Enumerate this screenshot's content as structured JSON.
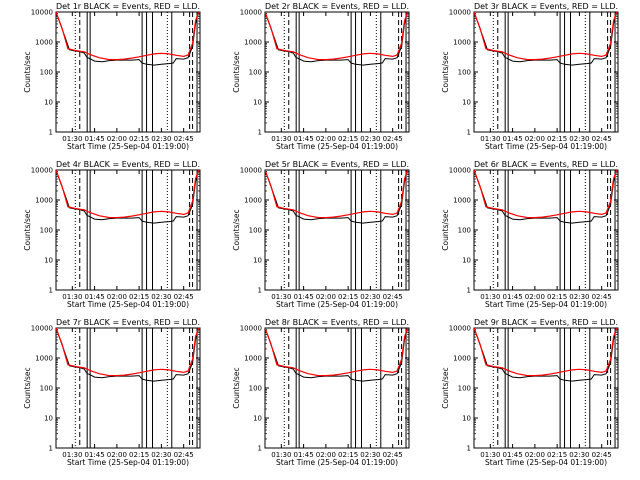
{
  "figure": {
    "xlabel": "Start Time (25-Sep-04 01:19:00)",
    "ylabel": "Counts/sec",
    "x_tick_labels": [
      "01:30",
      "01:45",
      "02:00",
      "02:15",
      "02:30",
      "02:45"
    ],
    "y_tick_labels": [
      "1",
      "10",
      "100",
      "1000",
      "10000"
    ]
  },
  "chart_data": [
    {
      "type": "line",
      "title": "Det 1r BLACK = Events, RED = LLD.",
      "xlabel": "Start Time (25-Sep-04 01:19:00)",
      "ylabel": "Counts/sec",
      "y_scale": "log",
      "xlim": [
        "01:19",
        "02:56"
      ],
      "ylim": [
        1,
        10000
      ],
      "series": [
        {
          "name": "Events",
          "color": "#000000"
        },
        {
          "name": "LLD",
          "color": "#ff0000"
        }
      ]
    },
    {
      "type": "line",
      "title": "Det 2r BLACK = Events, RED = LLD.",
      "xlabel": "Start Time (25-Sep-04 01:19:00)",
      "ylabel": "Counts/sec",
      "y_scale": "log",
      "xlim": [
        "01:19",
        "02:56"
      ],
      "ylim": [
        1,
        10000
      ],
      "series": [
        {
          "name": "Events",
          "color": "#000000"
        },
        {
          "name": "LLD",
          "color": "#ff0000"
        }
      ]
    },
    {
      "type": "line",
      "title": "Det 3r BLACK = Events, RED = LLD.",
      "xlabel": "Start Time (25-Sep-04 01:19:00)",
      "ylabel": "Counts/sec",
      "y_scale": "log",
      "xlim": [
        "01:19",
        "02:56"
      ],
      "ylim": [
        1,
        10000
      ],
      "series": [
        {
          "name": "Events",
          "color": "#000000"
        },
        {
          "name": "LLD",
          "color": "#ff0000"
        }
      ]
    },
    {
      "type": "line",
      "title": "Det 4r BLACK = Events, RED = LLD.",
      "xlabel": "Start Time (25-Sep-04 01:19:00)",
      "ylabel": "Counts/sec",
      "y_scale": "log",
      "xlim": [
        "01:19",
        "02:56"
      ],
      "ylim": [
        1,
        10000
      ],
      "series": [
        {
          "name": "Events",
          "color": "#000000"
        },
        {
          "name": "LLD",
          "color": "#ff0000"
        }
      ]
    },
    {
      "type": "line",
      "title": "Det 5r BLACK = Events, RED = LLD.",
      "xlabel": "Start Time (25-Sep-04 01:19:00)",
      "ylabel": "Counts/sec",
      "y_scale": "log",
      "xlim": [
        "01:19",
        "02:56"
      ],
      "ylim": [
        1,
        10000
      ],
      "series": [
        {
          "name": "Events",
          "color": "#000000"
        },
        {
          "name": "LLD",
          "color": "#ff0000"
        }
      ]
    },
    {
      "type": "line",
      "title": "Det 6r BLACK = Events, RED = LLD.",
      "xlabel": "Start Time (25-Sep-04 01:19:00)",
      "ylabel": "Counts/sec",
      "y_scale": "log",
      "xlim": [
        "01:19",
        "02:56"
      ],
      "ylim": [
        1,
        10000
      ],
      "series": [
        {
          "name": "Events",
          "color": "#000000"
        },
        {
          "name": "LLD",
          "color": "#ff0000"
        }
      ]
    },
    {
      "type": "line",
      "title": "Det 7r BLACK = Events, RED = LLD.",
      "xlabel": "Start Time (25-Sep-04 01:19:00)",
      "ylabel": "Counts/sec",
      "y_scale": "log",
      "xlim": [
        "01:19",
        "02:56"
      ],
      "ylim": [
        1,
        10000
      ],
      "series": [
        {
          "name": "Events",
          "color": "#000000"
        },
        {
          "name": "LLD",
          "color": "#ff0000"
        }
      ]
    },
    {
      "type": "line",
      "title": "Det 8r BLACK = Events, RED = LLD.",
      "xlabel": "Start Time (25-Sep-04 01:19:00)",
      "ylabel": "Counts/sec",
      "y_scale": "log",
      "xlim": [
        "01:19",
        "02:56"
      ],
      "ylim": [
        1,
        10000
      ],
      "series": [
        {
          "name": "Events",
          "color": "#000000"
        },
        {
          "name": "LLD",
          "color": "#ff0000"
        }
      ]
    },
    {
      "type": "line",
      "title": "Det 9r BLACK = Events, RED = LLD.",
      "xlabel": "Start Time (25-Sep-04 01:19:00)",
      "ylabel": "Counts/sec",
      "y_scale": "log",
      "xlim": [
        "01:19",
        "02:56"
      ],
      "ylim": [
        1,
        10000
      ],
      "series": [
        {
          "name": "Events",
          "color": "#000000"
        },
        {
          "name": "LLD",
          "color": "#ff0000"
        }
      ]
    }
  ],
  "events_series": [
    [
      "01:19",
      10000
    ],
    [
      "01:25",
      1500
    ],
    [
      "01:28",
      550
    ],
    [
      "01:32",
      500
    ],
    [
      "01:35",
      480
    ],
    [
      "01:38",
      430
    ],
    [
      "01:40",
      300
    ],
    [
      "01:41",
      290
    ],
    [
      "01:45",
      230
    ],
    [
      "01:50",
      220
    ],
    [
      "01:55",
      240
    ],
    [
      "02:00",
      250
    ],
    [
      "02:05",
      250
    ],
    [
      "02:10",
      250
    ],
    [
      "02:15",
      260
    ],
    [
      "02:17",
      200
    ],
    [
      "02:20",
      180
    ],
    [
      "02:25",
      170
    ],
    [
      "02:30",
      180
    ],
    [
      "02:35",
      190
    ],
    [
      "02:38",
      200
    ],
    [
      "02:40",
      280
    ],
    [
      "02:45",
      270
    ],
    [
      "02:48",
      300
    ],
    [
      "02:51",
      700
    ],
    [
      "02:53",
      4000
    ],
    [
      "02:55",
      10000
    ]
  ],
  "lld_series": [
    [
      "01:19",
      10000
    ],
    [
      "01:23",
      3000
    ],
    [
      "01:27",
      600
    ],
    [
      "01:32",
      520
    ],
    [
      "01:38",
      470
    ],
    [
      "01:42",
      380
    ],
    [
      "01:48",
      300
    ],
    [
      "01:55",
      260
    ],
    [
      "02:00",
      260
    ],
    [
      "02:05",
      270
    ],
    [
      "02:10",
      290
    ],
    [
      "02:15",
      320
    ],
    [
      "02:20",
      360
    ],
    [
      "02:25",
      400
    ],
    [
      "02:30",
      420
    ],
    [
      "02:35",
      400
    ],
    [
      "02:40",
      360
    ],
    [
      "02:45",
      330
    ],
    [
      "02:48",
      370
    ],
    [
      "02:51",
      900
    ],
    [
      "02:53",
      5000
    ],
    [
      "02:55",
      10000
    ]
  ],
  "markers": [
    {
      "time": "01:32",
      "style": "dotted"
    },
    {
      "time": "01:35",
      "style": "dashed"
    },
    {
      "time": "01:40",
      "style": "solid"
    },
    {
      "time": "01:42",
      "style": "solid"
    },
    {
      "time": "02:17",
      "style": "solid"
    },
    {
      "time": "02:20",
      "style": "solid"
    },
    {
      "time": "02:24",
      "style": "solid"
    },
    {
      "time": "02:34",
      "style": "dotted"
    },
    {
      "time": "02:37",
      "style": "solid"
    },
    {
      "time": "02:49",
      "style": "dashed"
    },
    {
      "time": "02:51",
      "style": "dashed"
    },
    {
      "time": "02:54",
      "style": "solid"
    }
  ]
}
